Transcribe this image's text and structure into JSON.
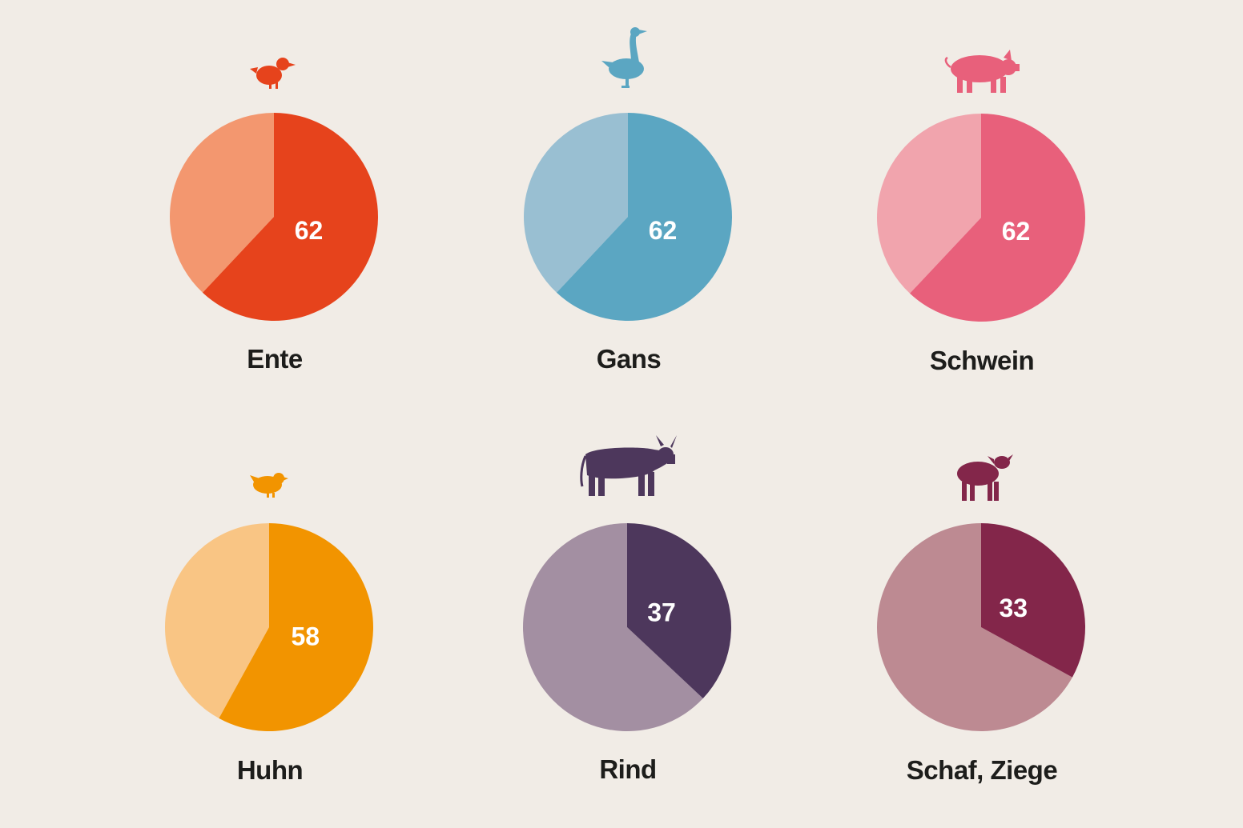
{
  "chart_data": [
    {
      "type": "pie",
      "label": "Ente",
      "value": 62,
      "icon": "duck-icon",
      "colors": {
        "main": "#e6431c",
        "rest": "#f3976f"
      }
    },
    {
      "type": "pie",
      "label": "Gans",
      "value": 62,
      "icon": "goose-icon",
      "colors": {
        "main": "#5ba6c2",
        "rest": "#99bfd2"
      }
    },
    {
      "type": "pie",
      "label": "Schwein",
      "value": 62,
      "icon": "pig-icon",
      "colors": {
        "main": "#e8607b",
        "rest": "#f1a4ad"
      }
    },
    {
      "type": "pie",
      "label": "Huhn",
      "value": 58,
      "icon": "chicken-icon",
      "colors": {
        "main": "#f29400",
        "rest": "#f9c584"
      }
    },
    {
      "type": "pie",
      "label": "Rind",
      "value": 37,
      "icon": "cow-icon",
      "colors": {
        "main": "#4d375c",
        "rest": "#a38fa2"
      }
    },
    {
      "type": "pie",
      "label": "Schaf, Ziege",
      "value": 33,
      "icon": "sheep-icon",
      "colors": {
        "main": "#83264a",
        "rest": "#bd8a92"
      }
    }
  ]
}
